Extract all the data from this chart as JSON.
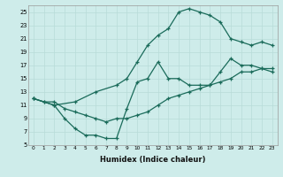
{
  "xlabel": "Humidex (Indice chaleur)",
  "background_color": "#ceecea",
  "grid_color": "#b8dbd8",
  "line_color": "#1a6b5a",
  "xlim": [
    -0.5,
    23.5
  ],
  "ylim": [
    5,
    26
  ],
  "yticks": [
    5,
    7,
    9,
    11,
    13,
    15,
    17,
    19,
    21,
    23,
    25
  ],
  "xticks": [
    0,
    1,
    2,
    3,
    4,
    5,
    6,
    7,
    8,
    9,
    10,
    11,
    12,
    13,
    14,
    15,
    16,
    17,
    18,
    19,
    20,
    21,
    22,
    23
  ],
  "line1_x": [
    0,
    1,
    2,
    3,
    4,
    5,
    6,
    7,
    8,
    9,
    10,
    11,
    12,
    13,
    14,
    15,
    16,
    17,
    18,
    19,
    20,
    21,
    22,
    23
  ],
  "line1_y": [
    12,
    11.5,
    11,
    9,
    7.5,
    6.5,
    6.5,
    6,
    6,
    10.5,
    14.5,
    15,
    17.5,
    15,
    15,
    14,
    14,
    14,
    16,
    18,
    17,
    17,
    16.5,
    16
  ],
  "line2_x": [
    0,
    1,
    2,
    3,
    4,
    5,
    6,
    7,
    8,
    9,
    10,
    11,
    12,
    13,
    14,
    15,
    16,
    17,
    18,
    19,
    20,
    21,
    22,
    23
  ],
  "line2_y": [
    12,
    11.5,
    11.5,
    10.5,
    10,
    9.5,
    9,
    8.5,
    9,
    9,
    9.5,
    10,
    11,
    12,
    12.5,
    13,
    13.5,
    14,
    14.5,
    15,
    16,
    16,
    16.5,
    16.5
  ],
  "line3_x": [
    0,
    2,
    4,
    6,
    8,
    9,
    10,
    11,
    12,
    13,
    14,
    15,
    16,
    17,
    18,
    19,
    20,
    21,
    22,
    23
  ],
  "line3_y": [
    12,
    11,
    11.5,
    13,
    14,
    15,
    17.5,
    20,
    21.5,
    22.5,
    25,
    25.5,
    25,
    24.5,
    23.5,
    21,
    20.5,
    20,
    20.5,
    20
  ]
}
